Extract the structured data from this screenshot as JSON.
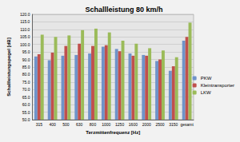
{
  "chart_data": {
    "type": "bar",
    "title": "Schallleistung 80 km/h",
    "x_label": "Terzmittenfrequenz [Hz]",
    "y_label": "Schallleistungspegel [dB]",
    "categories": [
      "315",
      "400",
      "500",
      "630",
      "800",
      "1000",
      "1250",
      "1600",
      "2000",
      "2500",
      "3150",
      "gesamt"
    ],
    "series": [
      {
        "name": "PKW",
        "color": "#6f93c9",
        "values": [
          92,
          89.5,
          92.5,
          93,
          94,
          98.5,
          97,
          94,
          93,
          89,
          82.5,
          102.5
        ]
      },
      {
        "name": "Kleintransporter",
        "color": "#c0504d",
        "values": [
          93.5,
          94.5,
          99,
          100.5,
          99,
          99.5,
          95.5,
          92.5,
          92.5,
          90,
          85.5,
          105
        ]
      },
      {
        "name": "LKW",
        "color": "#9bbb59",
        "values": [
          106.5,
          105,
          106,
          109.5,
          110.5,
          108,
          102.5,
          100.5,
          97.5,
          96,
          91.5,
          114.5
        ]
      }
    ],
    "ylim": [
      50,
      120
    ],
    "yticks": [
      {
        "value": 50,
        "label": "50.0"
      },
      {
        "value": 55,
        "label": "55.0"
      },
      {
        "value": 60,
        "label": "60.0"
      },
      {
        "value": 65,
        "label": "65.0"
      },
      {
        "value": 70,
        "label": "70.0"
      },
      {
        "value": 75,
        "label": "75.0"
      },
      {
        "value": 80,
        "label": "80.0"
      },
      {
        "value": 85,
        "label": "85.0"
      },
      {
        "value": 90,
        "label": "90.0"
      },
      {
        "value": 95,
        "label": "95.0"
      },
      {
        "value": 100,
        "label": "100.0"
      },
      {
        "value": 105,
        "label": "105.0"
      },
      {
        "value": 110,
        "label": "110.0"
      },
      {
        "value": 115,
        "label": "115.0"
      },
      {
        "value": 120,
        "label": "120.0"
      }
    ],
    "grid": true,
    "legend": "right"
  }
}
